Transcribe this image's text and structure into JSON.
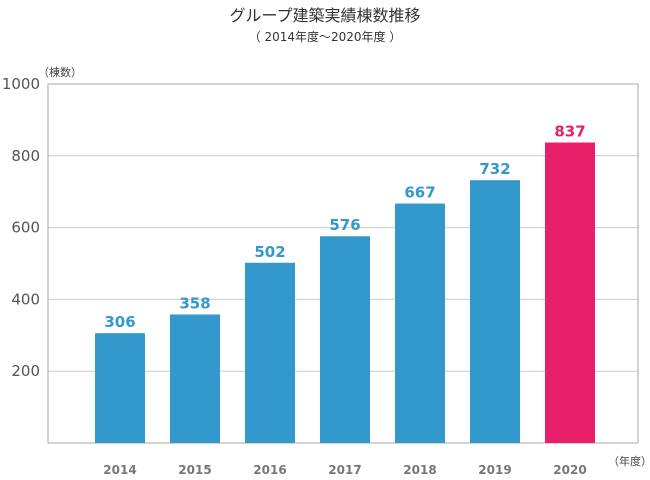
{
  "chart_data": {
    "type": "bar",
    "title": "グループ建築実績棟数推移",
    "subtitle": "（ 2014年度～2020年度 ）",
    "ylabel": "（棟数）",
    "xlabel": "（年度）",
    "categories": [
      "2014",
      "2015",
      "2016",
      "2017",
      "2018",
      "2019",
      "2020"
    ],
    "values": [
      306,
      358,
      502,
      576,
      667,
      732,
      837
    ],
    "ylim": [
      0,
      1000
    ],
    "yticks": [
      200,
      400,
      600,
      800,
      1000
    ],
    "grid": true,
    "colors": {
      "bar": "#3399cc",
      "highlight": "#e8206a",
      "label": "#3399cc",
      "highlight_label": "#e8206a"
    },
    "highlight_index": 6
  }
}
